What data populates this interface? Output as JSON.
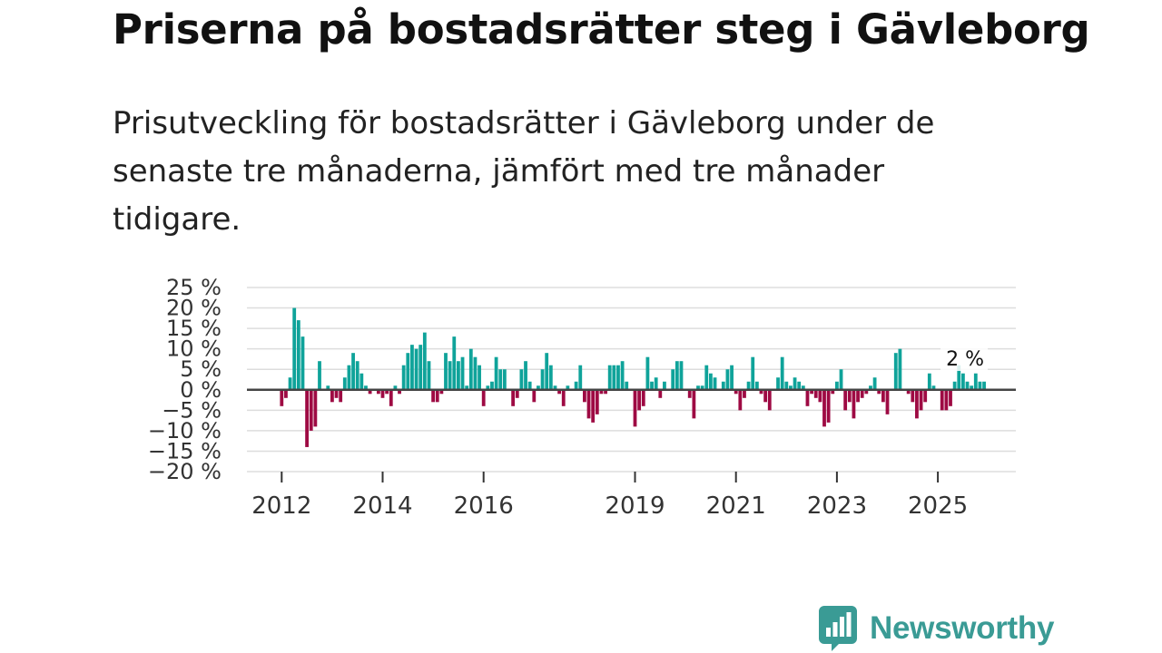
{
  "header": {
    "title": "Priserna på bostadsrätter steg i Gävleborg",
    "subtitle": "Prisutveckling för bostadsrätter i Gävleborg under de senaste tre månaderna, jämfört med tre månader tidigare."
  },
  "colors": {
    "positive": "#0fa39a",
    "negative": "#9e0a43",
    "zero_line": "#444444",
    "grid": "#dddddd",
    "brand": "#3a9b95"
  },
  "logo": {
    "text": "Newsworthy",
    "icon": "bar-chart-speech-bubble-icon"
  },
  "chart_data": {
    "type": "bar",
    "title": "Priserna på bostadsrätter steg i Gävleborg",
    "xlabel": "",
    "ylabel": "",
    "ylim": [
      -20,
      25
    ],
    "yticks": [
      25,
      20,
      15,
      10,
      5,
      0,
      -5,
      -10,
      -15,
      -20
    ],
    "ytick_labels": [
      "25 %",
      "20 %",
      "15 %",
      "10 %",
      "5 %",
      "0 %",
      "−5 %",
      "−10 %",
      "−15 %",
      "−20 %"
    ],
    "xtick_labels": [
      "2012",
      "2014",
      "2016",
      "2019",
      "2021",
      "2023",
      "2025"
    ],
    "xtick_years": [
      2012,
      2014,
      2016,
      2019,
      2021,
      2023,
      2025
    ],
    "start": "2012-01",
    "last_value_label": "2 %",
    "values": [
      -4,
      -2,
      3,
      20,
      17,
      13,
      -14,
      -10,
      -9,
      7,
      0,
      1,
      -3,
      -2,
      -3,
      3,
      6,
      9,
      7,
      4,
      1,
      -1,
      0,
      -1,
      -2,
      -1,
      -4,
      1,
      -1,
      6,
      9,
      11,
      10,
      11,
      14,
      7,
      -3,
      -3,
      -1,
      9,
      7,
      13,
      7,
      8,
      1,
      10,
      8,
      6,
      -4,
      1,
      2,
      8,
      5,
      5,
      0,
      -4,
      -2,
      5,
      7,
      2,
      -3,
      1,
      5,
      9,
      6,
      1,
      -1,
      -4,
      1,
      0,
      2,
      6,
      -3,
      -7,
      -8,
      -6,
      -1,
      -1,
      6,
      6,
      6,
      7,
      2,
      0,
      -9,
      -5,
      -4,
      8,
      2,
      3,
      -2,
      2,
      0,
      5,
      7,
      7,
      0,
      -2,
      -7,
      1,
      1,
      6,
      4,
      3,
      0,
      2,
      5,
      6,
      -1,
      -5,
      -2,
      2,
      8,
      2,
      -1,
      -3,
      -5,
      0,
      3,
      8,
      2,
      1,
      3,
      2,
      1,
      -4,
      -1,
      -2,
      -3,
      -9,
      -8,
      -1,
      2,
      5,
      -5,
      -3,
      -7,
      -3,
      -2,
      -1,
      1,
      3,
      -1,
      -3,
      -6,
      0,
      9,
      10,
      0,
      -1,
      -3,
      -7,
      -5,
      -3,
      4,
      1,
      0,
      -5,
      -5,
      -4,
      2,
      6,
      4,
      2,
      1,
      4,
      2,
      2
    ]
  }
}
